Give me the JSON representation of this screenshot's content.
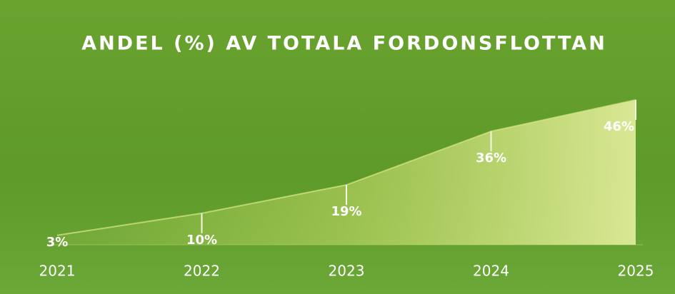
{
  "chart_data": {
    "type": "area",
    "title": "ANDEL (%) AV TOTALA FORDONSFLOTTAN",
    "categories": [
      "2021",
      "2022",
      "2023",
      "2024",
      "2025"
    ],
    "values": [
      3,
      10,
      19,
      36,
      46
    ],
    "value_labels": [
      "3%",
      "10%",
      "19%",
      "36%",
      "46%"
    ],
    "color": "#d9e88a"
  }
}
